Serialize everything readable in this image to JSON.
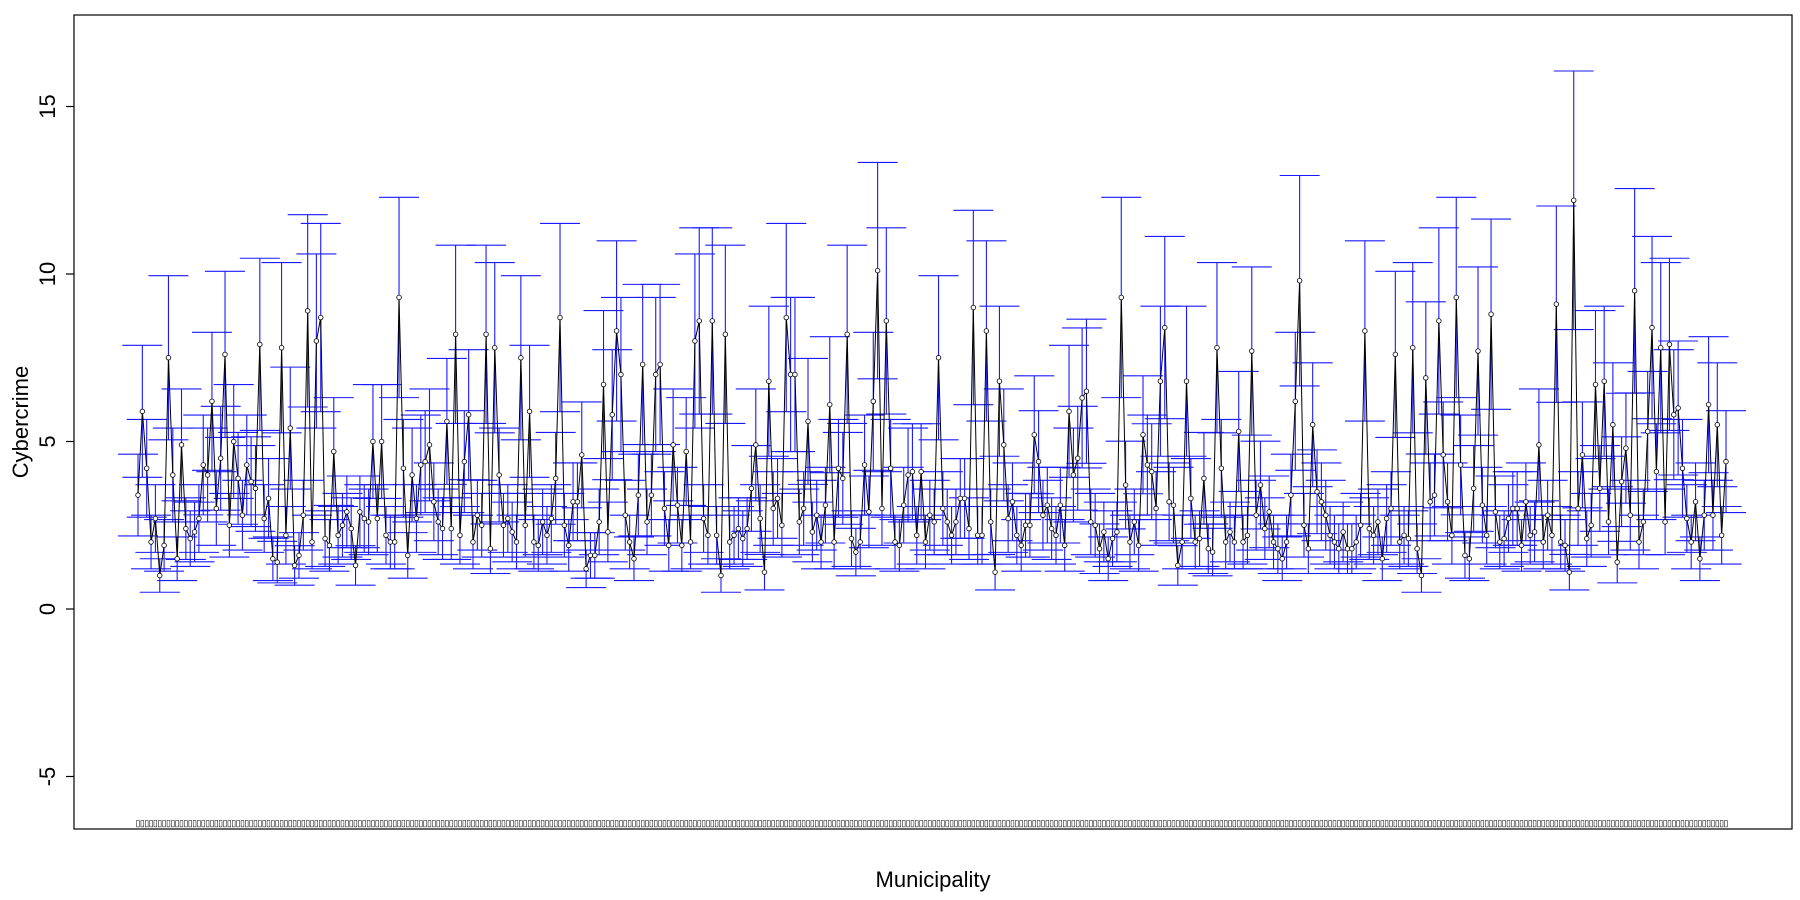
{
  "chart_data": {
    "type": "line",
    "title": "",
    "xlabel": "Municipality",
    "ylabel": "Cybercrime",
    "ylim": [
      -6.5,
      17.5
    ],
    "yticks": [
      -5,
      0,
      5,
      10,
      15
    ],
    "ytick_labels": [
      "-5",
      "0",
      "5",
      "10",
      "15"
    ],
    "series": [
      {
        "values": [
          3.4,
          5.9,
          4.2,
          2.0,
          2.7,
          1.0,
          1.9,
          7.5,
          4.0,
          1.5,
          4.9,
          2.4,
          2.1,
          2.3,
          2.7,
          4.3,
          4.0,
          6.2,
          3.0,
          4.5,
          7.6,
          2.5,
          5.0,
          3.9,
          2.8,
          4.3,
          3.8,
          3.6,
          7.9,
          2.7,
          3.3,
          1.5,
          1.4,
          7.8,
          2.2,
          5.4,
          1.3,
          1.6,
          2.8,
          8.9,
          2.0,
          8.0,
          8.7,
          2.1,
          1.9,
          4.7,
          2.2,
          2.5,
          2.9,
          2.4,
          1.3,
          2.9,
          2.7,
          2.6,
          5.0,
          2.7,
          5.0,
          2.2,
          2.0,
          2.0,
          9.3,
          4.2,
          1.6,
          4.0,
          2.7,
          4.3,
          4.4,
          4.9,
          3.2,
          2.6,
          2.4,
          5.6,
          2.4,
          8.2,
          2.2,
          4.4,
          5.8,
          2.0,
          2.8,
          2.5,
          8.2,
          1.8,
          7.8,
          4.0,
          2.5,
          2.7,
          2.3,
          2.0,
          7.5,
          2.5,
          5.9,
          2.0,
          1.9,
          2.6,
          2.2,
          2.7,
          3.9,
          8.7,
          2.5,
          1.9,
          3.2,
          3.2,
          4.6,
          1.2,
          1.6,
          1.6,
          2.6,
          6.7,
          2.3,
          5.8,
          8.3,
          7.0,
          2.8,
          2.0,
          1.5,
          3.4,
          7.3,
          2.6,
          3.4,
          7.0,
          7.3,
          3.0,
          1.9,
          4.9,
          3.1,
          1.9,
          4.7,
          2.0,
          8.0,
          8.6,
          2.7,
          2.2,
          8.6,
          2.2,
          1.0,
          8.2,
          2.0,
          2.2,
          2.4,
          2.1,
          2.4,
          3.6,
          4.9,
          2.7,
          1.1,
          6.8,
          3.0,
          3.3,
          2.5,
          8.7,
          7.0,
          7.0,
          2.6,
          3.0,
          5.6,
          2.3,
          2.8,
          2.0,
          3.1,
          6.1,
          2.0,
          4.2,
          3.9,
          8.2,
          2.1,
          1.7,
          2.0,
          4.3,
          2.9,
          6.2,
          10.1,
          3.0,
          8.6,
          4.2,
          2.0,
          1.9,
          3.1,
          4.0,
          4.1,
          2.2,
          4.1,
          2.0,
          2.8,
          2.6,
          7.5,
          3.0,
          2.6,
          2.2,
          2.6,
          3.3,
          3.3,
          2.4,
          9.0,
          2.2,
          2.2,
          8.3,
          2.6,
          1.1,
          6.8,
          4.9,
          2.7,
          3.2,
          2.2,
          1.9,
          2.5,
          2.5,
          5.2,
          4.4,
          2.8,
          3.1,
          2.4,
          2.2,
          3.1,
          1.9,
          5.9,
          4.0,
          4.5,
          6.3,
          6.5,
          2.6,
          2.5,
          1.8,
          2.3,
          1.5,
          2.1,
          2.3,
          9.3,
          3.7,
          2.0,
          2.6,
          1.9,
          5.2,
          4.3,
          4.1,
          3.0,
          6.8,
          8.4,
          3.2,
          3.1,
          1.3,
          2.0,
          6.8,
          3.3,
          2.0,
          2.1,
          3.9,
          1.8,
          1.7,
          7.8,
          4.2,
          2.0,
          2.3,
          2.0,
          5.3,
          2.0,
          2.2,
          7.7,
          2.8,
          3.7,
          2.4,
          2.9,
          2.0,
          1.8,
          1.5,
          2.0,
          3.4,
          6.2,
          9.8,
          2.5,
          1.8,
          5.5,
          3.5,
          3.2,
          2.8,
          2.2,
          2.0,
          1.8,
          2.3,
          1.8,
          1.8,
          2.0,
          2.5,
          8.3,
          2.4,
          2.2,
          2.6,
          1.5,
          2.7,
          3.0,
          7.6,
          2.0,
          2.2,
          2.1,
          7.8,
          1.8,
          1.0,
          6.9,
          3.2,
          3.4,
          8.6,
          4.6,
          3.2,
          2.2,
          9.3,
          4.3,
          1.6,
          1.5,
          3.6,
          7.7,
          3.1,
          2.2,
          8.8,
          2.9,
          2.0,
          2.1,
          2.7,
          3.0,
          3.0,
          1.9,
          3.2,
          2.2,
          2.3,
          4.9,
          2.0,
          2.8,
          2.2,
          9.1,
          2.0,
          1.9,
          1.1,
          12.2,
          3.0,
          4.6,
          2.1,
          2.5,
          6.7,
          3.6,
          6.8,
          2.6,
          5.5,
          1.4,
          3.8,
          4.8,
          2.8,
          9.5,
          2.0,
          2.6,
          5.3,
          8.4,
          4.1,
          7.8,
          2.6,
          7.9,
          5.8,
          6.0,
          4.2,
          2.7,
          2.0,
          3.2,
          1.5,
          2.8,
          6.1,
          2.8,
          5.5,
          2.2,
          4.4
        ]
      }
    ],
    "grid": false,
    "legend": "none"
  }
}
